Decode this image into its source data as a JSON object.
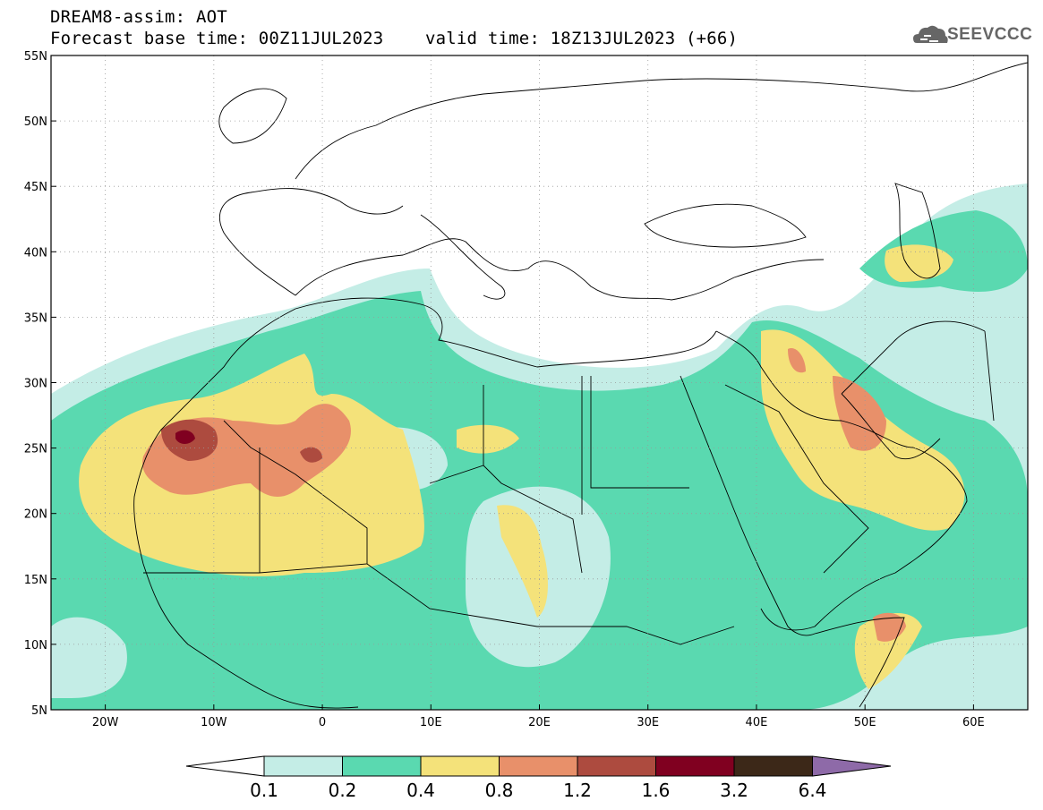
{
  "title": {
    "line1": "DREAM8-assim: AOT",
    "line2": "Forecast base time: 00Z11JUL2023    valid time: 18Z13JUL2023 (+66)"
  },
  "logo": {
    "text": "SEEVCCC",
    "icon": "cloud-icon"
  },
  "axes": {
    "lat_labels": [
      "55N",
      "50N",
      "45N",
      "40N",
      "35N",
      "30N",
      "25N",
      "20N",
      "15N",
      "10N",
      "5N"
    ],
    "lon_labels": [
      "20W",
      "10W",
      "0",
      "10E",
      "20E",
      "30E",
      "40E",
      "50E",
      "60E"
    ],
    "lon_range": [
      -25,
      65
    ],
    "lat_range": [
      5,
      55
    ]
  },
  "colorbar": {
    "labels": [
      "0.1",
      "0.2",
      "0.4",
      "0.8",
      "1.2",
      "1.6",
      "3.2",
      "6.4"
    ],
    "colors": [
      "#ffffff",
      "#c4ede6",
      "#5ad9b0",
      "#f4e27a",
      "#e8906a",
      "#ad4b3f",
      "#800020",
      "#3c2818",
      "#8e6aa8"
    ]
  },
  "colors": {
    "aot_01": "#c4ede6",
    "aot_02": "#5ad9b0",
    "aot_04": "#f4e27a",
    "aot_08": "#e8906a",
    "aot_12": "#ad4b3f",
    "aot_16": "#800020"
  }
}
